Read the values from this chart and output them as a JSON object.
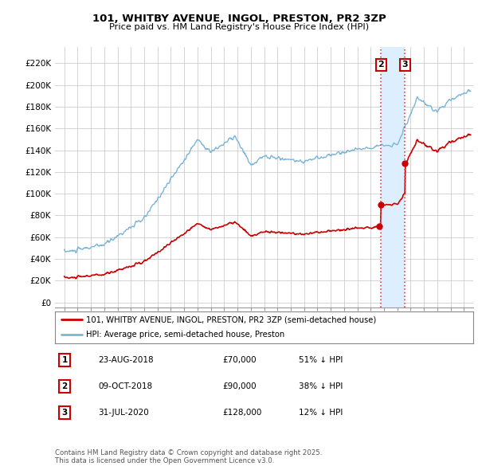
{
  "title_line1": "101, WHITBY AVENUE, INGOL, PRESTON, PR2 3ZP",
  "title_line2": "Price paid vs. HM Land Registry's House Price Index (HPI)",
  "yticks": [
    0,
    20000,
    40000,
    60000,
    80000,
    100000,
    120000,
    140000,
    160000,
    180000,
    200000,
    220000
  ],
  "ytick_labels": [
    "£0",
    "£20K",
    "£40K",
    "£60K",
    "£80K",
    "£100K",
    "£120K",
    "£140K",
    "£160K",
    "£180K",
    "£200K",
    "£220K"
  ],
  "ylim": [
    -5000,
    235000
  ],
  "xlim_left": 1994.3,
  "xlim_right": 2025.7,
  "hpi_color": "#7ab5d8",
  "sale_color": "#cc0000",
  "vline_color": "#dd4444",
  "annotation_box_color": "#cc0000",
  "shade_color": "#ddeeff",
  "sale_points": [
    {
      "date_num": 2018.644,
      "price": 70000,
      "label": "1",
      "vline": false
    },
    {
      "date_num": 2018.772,
      "price": 90000,
      "label": "2",
      "vline": true
    },
    {
      "date_num": 2020.578,
      "price": 128000,
      "label": "3",
      "vline": true
    }
  ],
  "legend_entries": [
    {
      "label": "101, WHITBY AVENUE, INGOL, PRESTON, PR2 3ZP (semi-detached house)",
      "color": "#cc0000"
    },
    {
      "label": "HPI: Average price, semi-detached house, Preston",
      "color": "#7ab5d8"
    }
  ],
  "table_rows": [
    {
      "num": "1",
      "date": "23-AUG-2018",
      "price": "£70,000",
      "hpi": "51% ↓ HPI"
    },
    {
      "num": "2",
      "date": "09-OCT-2018",
      "price": "£90,000",
      "hpi": "38% ↓ HPI"
    },
    {
      "num": "3",
      "date": "31-JUL-2020",
      "price": "£128,000",
      "hpi": "12% ↓ HPI"
    }
  ],
  "footer": "Contains HM Land Registry data © Crown copyright and database right 2025.\nThis data is licensed under the Open Government Licence v3.0.",
  "bg_color": "#ffffff",
  "grid_color": "#cccccc"
}
